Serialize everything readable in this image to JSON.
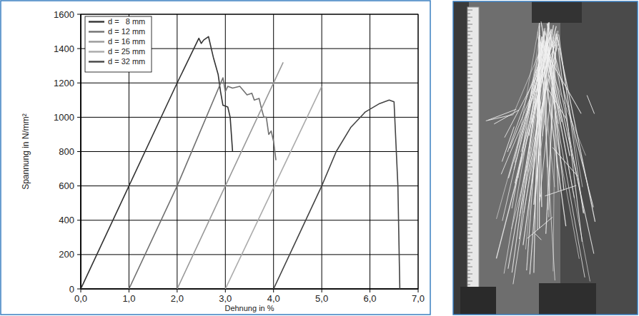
{
  "chart_data": {
    "type": "line",
    "x_label": "Dehnung in %",
    "y_label": "Spannung in N/mm²",
    "xlim": [
      0,
      7
    ],
    "ylim": [
      0,
      1600
    ],
    "xticks": [
      {
        "value": 0,
        "label": "0,0"
      },
      {
        "value": 1,
        "label": "1,0"
      },
      {
        "value": 2,
        "label": "2,0"
      },
      {
        "value": 3,
        "label": "3,0"
      },
      {
        "value": 4,
        "label": "4,0"
      },
      {
        "value": 5,
        "label": "5,0"
      },
      {
        "value": 6,
        "label": "6,0"
      },
      {
        "value": 7,
        "label": "7,0"
      }
    ],
    "yticks": [
      0,
      200,
      400,
      600,
      800,
      1000,
      1200,
      1400,
      1600
    ],
    "grid": true,
    "legend": "upper left",
    "series": [
      {
        "name": "d =   8 mm",
        "color": "#333333",
        "x": [
          0,
          1,
          2,
          2.45,
          2.5,
          2.55,
          2.65,
          2.75,
          2.85,
          2.9,
          2.95,
          3.05,
          3.1,
          3.15
        ],
        "values": [
          0,
          600,
          1200,
          1460,
          1430,
          1450,
          1470,
          1350,
          1250,
          1150,
          1070,
          1060,
          1000,
          800
        ]
      },
      {
        "name": "d = 12 mm",
        "color": "#707070",
        "x": [
          1,
          2,
          2.95,
          3.0,
          3.05,
          3.15,
          3.3,
          3.45,
          3.55,
          3.6,
          3.7,
          3.75,
          3.8,
          3.85,
          3.9,
          3.95,
          4.0,
          4.05
        ],
        "values": [
          0,
          600,
          1230,
          1150,
          1180,
          1170,
          1180,
          1130,
          1140,
          1100,
          1110,
          1050,
          1000,
          1000,
          900,
          920,
          860,
          750
        ]
      },
      {
        "name": "d = 16 mm",
        "color": "#999999",
        "x": [
          2,
          3,
          4.2
        ],
        "values": [
          0,
          600,
          1320
        ]
      },
      {
        "name": "d = 25 mm",
        "color": "#aaaaaa",
        "x": [
          3,
          5
        ],
        "values": [
          0,
          1180
        ]
      },
      {
        "name": "d = 32 mm",
        "color": "#444444",
        "x": [
          4.0,
          4.5,
          5.0,
          5.3,
          5.6,
          5.9,
          6.2,
          6.4,
          6.5,
          6.58,
          6.62
        ],
        "values": [
          0,
          300,
          600,
          800,
          940,
          1030,
          1080,
          1100,
          1090,
          600,
          0
        ]
      }
    ]
  }
}
